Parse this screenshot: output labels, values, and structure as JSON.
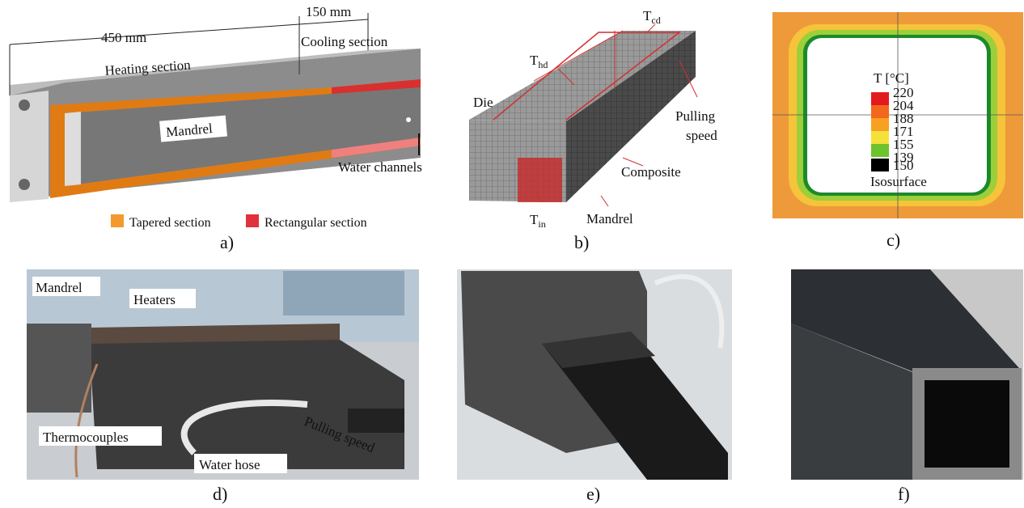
{
  "panel_a": {
    "heating_length": "450 mm",
    "cooling_length": "150 mm",
    "heating_section": "Heating section",
    "cooling_section": "Cooling section",
    "mandrel": "Mandrel",
    "water_channels": "Water channels",
    "legend": [
      "Tapered section",
      "Rectangular section"
    ],
    "caption": "a)"
  },
  "panel_b": {
    "t_cd": {
      "symbol": "T",
      "sub": "cd"
    },
    "t_hd": {
      "symbol": "T",
      "sub": "hd"
    },
    "t_in": {
      "symbol": "T",
      "sub": "in"
    },
    "die": "Die",
    "pulling_speed": [
      "Pulling",
      "speed"
    ],
    "composite": "Composite",
    "mandrel": "Mandrel",
    "caption": "b)"
  },
  "panel_c": {
    "legend_title": "T [°C]",
    "scale": [
      "220",
      "204",
      "188",
      "171",
      "155",
      "139"
    ],
    "isosurface_value": "150",
    "isosurface": "Isosurface",
    "caption": "c)"
  },
  "panel_d": {
    "mandrel": "Mandrel",
    "heaters": "Heaters",
    "thermocouples": "Thermocouples",
    "water_hose": "Water hose",
    "pulling_speed": "Pulling speed",
    "caption": "d)"
  },
  "panel_e": {
    "caption": "e)"
  },
  "panel_f": {
    "caption": "f)"
  }
}
